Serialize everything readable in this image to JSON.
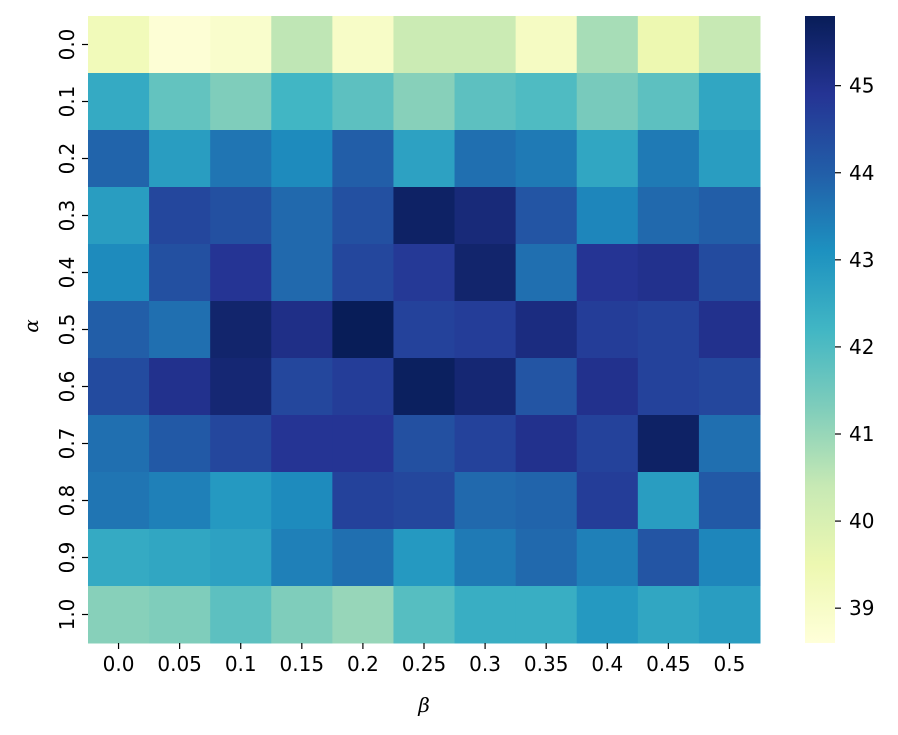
{
  "chart_data": {
    "type": "heatmap",
    "title": "",
    "xlabel": "β",
    "ylabel": "α",
    "x_categories": [
      "0.0",
      "0.05",
      "0.1",
      "0.15",
      "0.2",
      "0.25",
      "0.3",
      "0.35",
      "0.4",
      "0.45",
      "0.5"
    ],
    "y_categories": [
      "0.0",
      "0.1",
      "0.2",
      "0.3",
      "0.4",
      "0.5",
      "0.6",
      "0.7",
      "0.8",
      "0.9",
      "1.0"
    ],
    "values": [
      [
        39.3,
        38.7,
        38.9,
        40.5,
        39.0,
        40.3,
        40.3,
        39.1,
        40.8,
        39.5,
        40.4
      ],
      [
        42.5,
        41.7,
        41.3,
        42.2,
        41.8,
        41.2,
        41.8,
        42.0,
        41.4,
        41.8,
        42.6
      ],
      [
        43.9,
        42.8,
        43.6,
        43.2,
        44.0,
        42.7,
        43.7,
        43.5,
        42.6,
        43.5,
        42.8
      ],
      [
        42.8,
        44.5,
        44.3,
        43.8,
        44.3,
        45.6,
        45.3,
        44.2,
        43.3,
        43.8,
        44.0
      ],
      [
        43.2,
        44.3,
        44.9,
        43.8,
        44.5,
        44.8,
        45.5,
        43.7,
        44.9,
        45.0,
        44.4
      ],
      [
        44.0,
        43.7,
        45.5,
        45.1,
        45.8,
        44.6,
        44.7,
        45.2,
        44.7,
        44.6,
        45.0
      ],
      [
        44.4,
        45.0,
        45.4,
        44.5,
        44.7,
        45.7,
        45.4,
        44.2,
        45.0,
        44.6,
        44.5
      ],
      [
        43.7,
        44.1,
        44.5,
        44.9,
        44.9,
        44.3,
        44.6,
        45.0,
        44.6,
        45.6,
        43.7
      ],
      [
        43.6,
        43.4,
        42.9,
        43.2,
        44.6,
        44.5,
        43.8,
        43.9,
        44.7,
        42.8,
        44.1
      ],
      [
        42.5,
        42.6,
        42.7,
        43.4,
        43.7,
        42.9,
        43.5,
        43.8,
        43.4,
        44.2,
        43.3
      ],
      [
        41.2,
        41.3,
        41.8,
        41.3,
        41.0,
        41.9,
        42.4,
        42.4,
        42.9,
        42.6,
        42.8
      ]
    ],
    "colorbar": {
      "colormap": "YlGnBu",
      "vmin": 38.6,
      "vmax": 45.8,
      "ticks": [
        "39",
        "40",
        "41",
        "42",
        "43",
        "44",
        "45"
      ]
    }
  }
}
